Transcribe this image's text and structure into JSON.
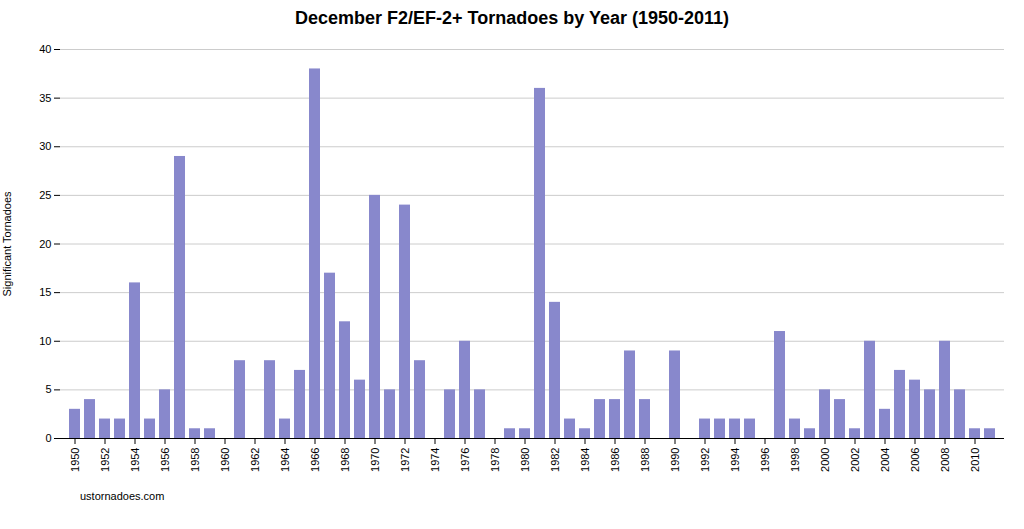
{
  "chart_data": {
    "type": "bar",
    "title": "December F2/EF-2+ Tornadoes by Year (1950-2011)",
    "ylabel": "Significant Tornadoes",
    "annotations": [
      "ustornadoes.com"
    ],
    "categories": [
      "1950",
      null,
      "1952",
      null,
      "1954",
      null,
      "1956",
      null,
      "1958",
      null,
      "1960",
      null,
      "1962",
      null,
      "1964",
      null,
      "1966",
      null,
      "1968",
      null,
      "1970",
      null,
      "1972",
      null,
      "1974",
      null,
      "1976",
      null,
      "1978",
      null,
      "1980",
      null,
      "1982",
      null,
      "1984",
      null,
      "1986",
      null,
      "1988",
      null,
      "1990",
      null,
      "1992",
      null,
      "1994",
      null,
      "1996",
      null,
      "1998",
      null,
      "2000",
      null,
      "2002",
      null,
      "2004",
      null,
      "2006",
      null,
      "2008",
      null,
      "2010",
      null
    ],
    "values": [
      3,
      4,
      2,
      2,
      16,
      2,
      5,
      29,
      1,
      1,
      0,
      8,
      0,
      8,
      2,
      7,
      38,
      17,
      12,
      6,
      25,
      5,
      24,
      8,
      0,
      5,
      10,
      5,
      0,
      1,
      1,
      36,
      14,
      2,
      1,
      4,
      4,
      9,
      4,
      0,
      9,
      0,
      2,
      2,
      2,
      2,
      0,
      11,
      2,
      1,
      5,
      4,
      1,
      10,
      3,
      7,
      6,
      5,
      10,
      5,
      1,
      1
    ],
    "color": "#8888cc",
    "ylim": [
      0,
      40
    ],
    "yticks": [
      0,
      5,
      10,
      15,
      20,
      25,
      30,
      35,
      40
    ],
    "grid": true
  }
}
